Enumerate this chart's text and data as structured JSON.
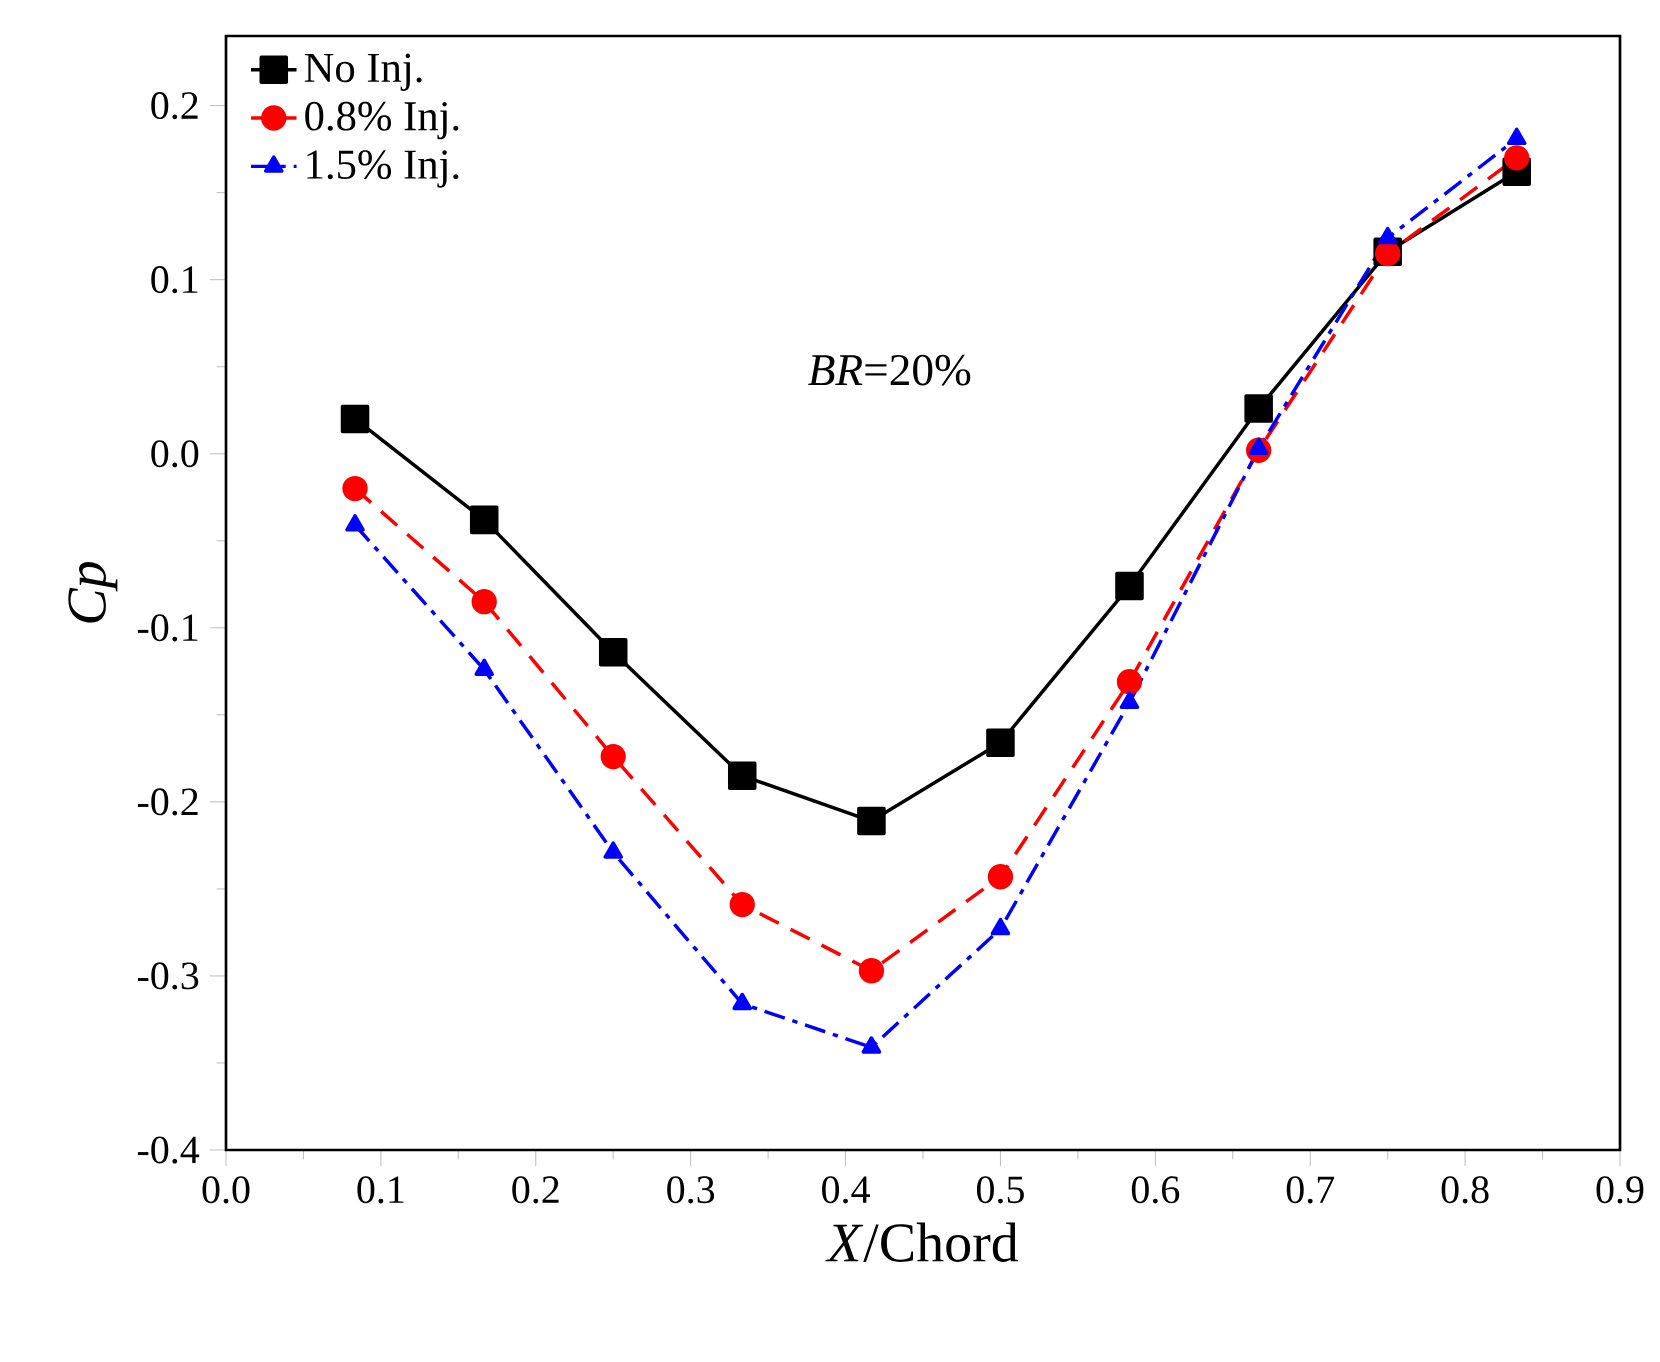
{
  "chart_data": {
    "type": "line",
    "xlabel": "*X*/Chord",
    "ylabel": "Cp",
    "annotations": [
      "*BR*=20%"
    ],
    "x": [
      0.0833,
      0.1667,
      0.25,
      0.3333,
      0.4167,
      0.5,
      0.5833,
      0.6667,
      0.75,
      0.8333
    ],
    "series": [
      {
        "name": "No Inj.",
        "color": "#000000",
        "marker": "square",
        "line_style": "solid",
        "values": [
          0.02,
          -0.038,
          -0.114,
          -0.185,
          -0.211,
          -0.166,
          -0.076,
          0.026,
          0.116,
          0.162
        ]
      },
      {
        "name": "0.8% Inj.",
        "color": "#ff0000",
        "marker": "circle",
        "line_style": "dashed",
        "values": [
          -0.02,
          -0.085,
          -0.174,
          -0.259,
          -0.297,
          -0.243,
          -0.131,
          0.002,
          0.115,
          0.17
        ]
      },
      {
        "name": "1.5% Inj.",
        "color": "#0000ff",
        "marker": "triangle",
        "line_style": "dashdot",
        "values": [
          -0.041,
          -0.124,
          -0.229,
          -0.316,
          -0.341,
          -0.273,
          -0.143,
          0.003,
          0.124,
          0.181
        ]
      }
    ],
    "xlim": [
      0,
      0.9
    ],
    "ylim": [
      -0.4,
      0.24
    ],
    "xticks": [
      {
        "value": 0,
        "label": "0.0"
      },
      {
        "value": 0.1,
        "label": "0.1"
      },
      {
        "value": 0.2,
        "label": "0.2"
      },
      {
        "value": 0.3,
        "label": "0.3"
      },
      {
        "value": 0.4,
        "label": "0.4"
      },
      {
        "value": 0.5,
        "label": "0.5"
      },
      {
        "value": 0.6,
        "label": "0.6"
      },
      {
        "value": 0.7,
        "label": "0.7"
      },
      {
        "value": 0.8,
        "label": "0.8"
      },
      {
        "value": 0.9,
        "label": "0.9"
      }
    ],
    "yticks": [
      {
        "value": -0.4,
        "label": "-0.4"
      },
      {
        "value": -0.3,
        "label": "-0.3"
      },
      {
        "value": -0.2,
        "label": "-0.2"
      },
      {
        "value": -0.1,
        "label": "-0.1"
      },
      {
        "value": 0,
        "label": "0.0"
      },
      {
        "value": 0.1,
        "label": "0.1"
      },
      {
        "value": 0.2,
        "label": "0.2"
      }
    ],
    "grid": false,
    "legend": "top left"
  }
}
